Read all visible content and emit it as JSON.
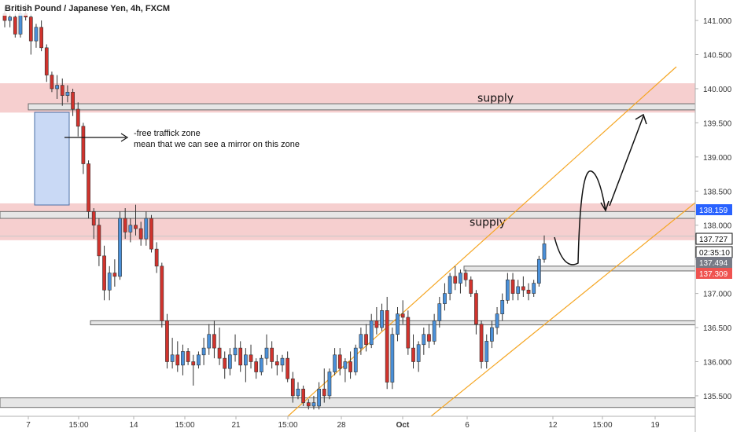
{
  "chart_data": {
    "type": "candlestick",
    "title": "British Pound / Japanese Yen, 4h, FXCM",
    "ylim": [
      135.2,
      141.3
    ],
    "y_ticks": [
      141.0,
      140.5,
      140.0,
      139.5,
      139.0,
      138.5,
      138.0,
      137.5,
      137.0,
      136.5,
      136.0,
      135.5
    ],
    "y_tick_labels": [
      "141.000",
      "140.500",
      "140.000",
      "139.500",
      "139.000",
      "138.500",
      "138.000",
      "",
      "137.000",
      "136.500",
      "136.000",
      "135.500"
    ],
    "x_ticks": [
      "7",
      "15:00",
      "14",
      "15:00",
      "21",
      "15:00",
      "28",
      "Oct",
      "6",
      "12",
      "15:00",
      "19"
    ],
    "candles": [
      [
        141.1,
        141.2,
        140.9,
        141.0
      ],
      [
        141.0,
        141.1,
        140.9,
        141.05
      ],
      [
        141.05,
        141.1,
        140.75,
        140.8
      ],
      [
        140.8,
        141.15,
        140.75,
        141.1
      ],
      [
        141.1,
        141.25,
        141.0,
        141.05
      ],
      [
        141.05,
        141.1,
        140.5,
        140.7
      ],
      [
        140.7,
        140.95,
        140.6,
        140.9
      ],
      [
        140.9,
        141.0,
        140.55,
        140.6
      ],
      [
        140.6,
        140.65,
        140.1,
        140.2
      ],
      [
        140.2,
        140.25,
        139.95,
        140.0
      ],
      [
        140.0,
        140.2,
        139.85,
        140.05
      ],
      [
        140.05,
        140.15,
        139.75,
        139.9
      ],
      [
        139.9,
        140.05,
        139.8,
        139.95
      ],
      [
        139.95,
        140.0,
        139.6,
        139.7
      ],
      [
        139.7,
        139.8,
        139.3,
        139.45
      ],
      [
        139.45,
        139.5,
        138.75,
        138.9
      ],
      [
        138.9,
        138.95,
        138.1,
        138.2
      ],
      [
        138.2,
        138.25,
        137.8,
        138.0
      ],
      [
        138.0,
        138.1,
        137.4,
        137.55
      ],
      [
        137.55,
        137.7,
        136.9,
        137.05
      ],
      [
        137.05,
        137.4,
        136.9,
        137.3
      ],
      [
        137.3,
        137.5,
        137.1,
        137.25
      ],
      [
        137.25,
        138.2,
        137.2,
        138.1
      ],
      [
        138.1,
        138.25,
        137.8,
        137.9
      ],
      [
        137.9,
        138.1,
        137.75,
        138.0
      ],
      [
        138.0,
        138.3,
        137.85,
        137.95
      ],
      [
        137.95,
        138.05,
        137.7,
        137.8
      ],
      [
        137.8,
        138.2,
        137.7,
        138.1
      ],
      [
        138.1,
        138.15,
        137.6,
        137.65
      ],
      [
        137.65,
        137.75,
        137.3,
        137.4
      ],
      [
        137.4,
        137.45,
        136.5,
        136.6
      ],
      [
        136.6,
        136.7,
        135.9,
        136.0
      ],
      [
        136.0,
        136.35,
        135.9,
        136.1
      ],
      [
        136.1,
        136.3,
        135.85,
        135.95
      ],
      [
        135.95,
        136.25,
        135.8,
        136.15
      ],
      [
        136.15,
        136.2,
        135.95,
        136.0
      ],
      [
        136.0,
        136.1,
        135.65,
        135.95
      ],
      [
        135.95,
        136.15,
        135.9,
        136.1
      ],
      [
        136.1,
        136.35,
        135.95,
        136.2
      ],
      [
        136.2,
        136.55,
        136.1,
        136.4
      ],
      [
        136.4,
        136.6,
        136.05,
        136.2
      ],
      [
        136.2,
        136.5,
        135.95,
        136.05
      ],
      [
        136.05,
        136.15,
        135.75,
        135.9
      ],
      [
        135.9,
        136.2,
        135.8,
        136.1
      ],
      [
        136.1,
        136.4,
        136.0,
        136.2
      ],
      [
        136.2,
        136.3,
        135.85,
        135.95
      ],
      [
        135.95,
        136.2,
        135.7,
        136.1
      ],
      [
        136.1,
        136.25,
        135.9,
        136.0
      ],
      [
        136.0,
        136.05,
        135.75,
        135.85
      ],
      [
        135.85,
        136.1,
        135.8,
        136.05
      ],
      [
        136.05,
        136.4,
        135.95,
        136.2
      ],
      [
        136.2,
        136.3,
        135.9,
        136.0
      ],
      [
        136.0,
        136.1,
        135.8,
        135.95
      ],
      [
        135.95,
        136.1,
        135.85,
        136.05
      ],
      [
        136.05,
        136.15,
        135.7,
        135.75
      ],
      [
        135.75,
        135.85,
        135.4,
        135.5
      ],
      [
        135.5,
        135.7,
        135.45,
        135.6
      ],
      [
        135.6,
        135.65,
        135.35,
        135.4
      ],
      [
        135.4,
        135.45,
        135.3,
        135.35
      ],
      [
        135.35,
        135.5,
        135.3,
        135.4
      ],
      [
        135.35,
        135.7,
        135.3,
        135.6
      ],
      [
        135.6,
        135.9,
        135.4,
        135.5
      ],
      [
        135.5,
        135.9,
        135.45,
        135.85
      ],
      [
        135.85,
        136.2,
        135.8,
        136.1
      ],
      [
        136.1,
        136.2,
        135.8,
        135.9
      ],
      [
        135.9,
        136.05,
        135.7,
        136.0
      ],
      [
        136.0,
        136.15,
        135.75,
        135.85
      ],
      [
        135.85,
        136.25,
        135.8,
        136.2
      ],
      [
        136.2,
        136.5,
        136.1,
        136.4
      ],
      [
        136.4,
        136.55,
        136.15,
        136.25
      ],
      [
        136.25,
        136.7,
        136.2,
        136.6
      ],
      [
        136.6,
        136.8,
        136.4,
        136.5
      ],
      [
        136.5,
        136.85,
        136.45,
        136.75
      ],
      [
        136.75,
        136.95,
        135.6,
        135.7
      ],
      [
        135.7,
        136.5,
        135.6,
        136.4
      ],
      [
        136.4,
        136.8,
        136.3,
        136.7
      ],
      [
        136.7,
        136.9,
        136.55,
        136.65
      ],
      [
        136.65,
        136.75,
        136.1,
        136.2
      ],
      [
        136.2,
        136.4,
        135.9,
        136.0
      ],
      [
        136.0,
        136.3,
        135.85,
        136.25
      ],
      [
        136.25,
        136.5,
        136.1,
        136.4
      ],
      [
        136.4,
        136.55,
        136.2,
        136.3
      ],
      [
        136.3,
        136.7,
        136.25,
        136.6
      ],
      [
        136.6,
        136.95,
        136.5,
        136.85
      ],
      [
        136.85,
        137.15,
        136.75,
        137.0
      ],
      [
        137.0,
        137.3,
        136.9,
        137.25
      ],
      [
        137.25,
        137.4,
        137.05,
        137.15
      ],
      [
        137.15,
        137.35,
        137.0,
        137.3
      ],
      [
        137.3,
        137.35,
        137.1,
        137.2
      ],
      [
        137.2,
        137.25,
        136.95,
        137.0
      ],
      [
        137.0,
        137.05,
        136.4,
        136.55
      ],
      [
        136.55,
        136.6,
        135.9,
        136.0
      ],
      [
        136.0,
        136.4,
        135.9,
        136.3
      ],
      [
        136.3,
        136.6,
        136.2,
        136.5
      ],
      [
        136.5,
        136.8,
        136.4,
        136.7
      ],
      [
        136.7,
        137.0,
        136.6,
        136.9
      ],
      [
        136.9,
        137.3,
        136.85,
        137.2
      ],
      [
        137.2,
        137.3,
        136.9,
        137.0
      ],
      [
        137.0,
        137.2,
        136.9,
        137.1
      ],
      [
        137.1,
        137.25,
        136.95,
        137.05
      ],
      [
        137.05,
        137.15,
        136.9,
        137.0
      ],
      [
        137.0,
        137.2,
        136.95,
        137.15
      ],
      [
        137.15,
        137.55,
        137.1,
        137.5
      ],
      [
        137.5,
        137.85,
        137.45,
        137.727
      ]
    ],
    "supply_zones": [
      {
        "label": "supply",
        "from": 139.65,
        "to": 140.08
      },
      {
        "label": "supply",
        "from": 137.78,
        "to": 138.32
      }
    ],
    "levels": [
      139.69,
      139.78,
      138.2,
      138.1,
      137.84,
      137.4,
      137.33,
      136.6,
      136.54,
      135.47,
      135.33
    ],
    "price_tags": [
      {
        "value": 138.159,
        "text": "138.159",
        "color": "#2962ff"
      },
      {
        "value": 137.727,
        "text": "137.727",
        "color": "#ffffff"
      },
      {
        "value": 137.6,
        "text": "02:35:10",
        "color": "#ffffff"
      },
      {
        "value": 137.494,
        "text": "137.494",
        "color": "#787b86"
      },
      {
        "value": 137.309,
        "text": "137.309",
        "color": "#ef5350"
      }
    ],
    "colors": {
      "up": "#4a90d9",
      "down": "#d0332d",
      "supply": "#f4c7c7",
      "traffic_zone": "#c9d9f5",
      "channel": "#f5a623",
      "level": "#c8c8c8"
    }
  },
  "annotations": {
    "traffic_line1": "-free traffick zone",
    "traffic_line2": "mean that we can see a mirror on this zone"
  }
}
